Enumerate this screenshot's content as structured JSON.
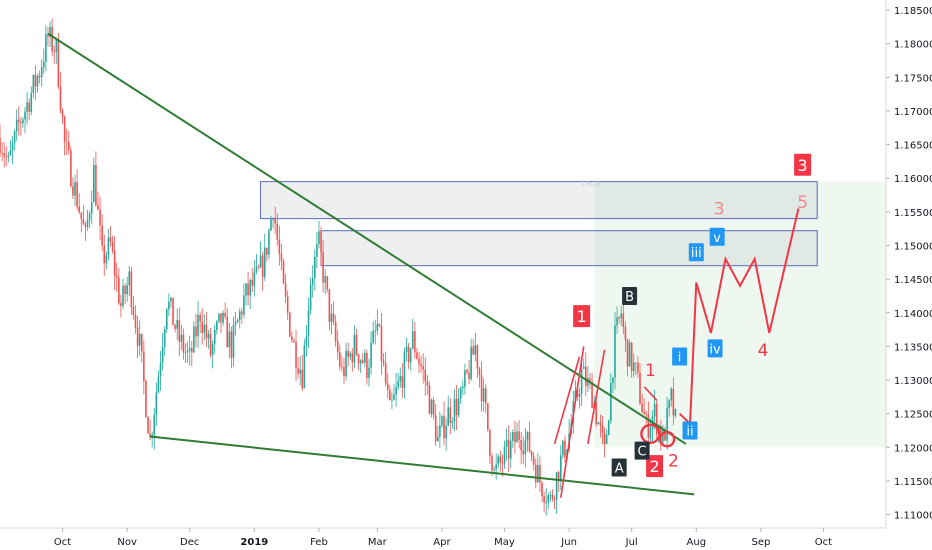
{
  "chart_data": {
    "type": "candlestick",
    "x_axis": {
      "ticks": [
        {
          "date": "2018-10-01",
          "label": "Oct"
        },
        {
          "date": "2018-11-01",
          "label": "Nov"
        },
        {
          "date": "2018-12-01",
          "label": "Dec"
        },
        {
          "date": "2019-01-01",
          "label": "2019"
        },
        {
          "date": "2019-02-01",
          "label": "Feb"
        },
        {
          "date": "2019-03-01",
          "label": "Mar"
        },
        {
          "date": "2019-04-01",
          "label": "Apr"
        },
        {
          "date": "2019-05-01",
          "label": "May"
        },
        {
          "date": "2019-06-01",
          "label": "Jun"
        },
        {
          "date": "2019-07-01",
          "label": "Jul"
        },
        {
          "date": "2019-08-01",
          "label": "Aug"
        },
        {
          "date": "2019-09-01",
          "label": "Sep"
        },
        {
          "date": "2019-10-01",
          "label": "Oct"
        }
      ],
      "range": [
        "2018-09-01",
        "2019-10-31"
      ]
    },
    "y_axis": {
      "range": [
        1.108,
        1.1865
      ],
      "tick_labels": [
        "1.18500",
        "1.18000",
        "1.17500",
        "1.17000",
        "1.16500",
        "1.16000",
        "1.15500",
        "1.15000",
        "1.14500",
        "1.14000",
        "1.13500",
        "1.13000",
        "1.12500",
        "1.12000",
        "1.11500",
        "1.11000"
      ],
      "position": "right",
      "grid": false
    },
    "price_path": [
      [
        "2018-09-01",
        1.166
      ],
      [
        "2018-09-05",
        1.162
      ],
      [
        "2018-09-10",
        1.168
      ],
      [
        "2018-09-14",
        1.171
      ],
      [
        "2018-09-20",
        1.176
      ],
      [
        "2018-09-24",
        1.181
      ],
      [
        "2018-09-28",
        1.179
      ],
      [
        "2018-10-02",
        1.165
      ],
      [
        "2018-10-08",
        1.157
      ],
      [
        "2018-10-12",
        1.151
      ],
      [
        "2018-10-16",
        1.161
      ],
      [
        "2018-10-20",
        1.148
      ],
      [
        "2018-10-24",
        1.15
      ],
      [
        "2018-10-29",
        1.141
      ],
      [
        "2018-11-02",
        1.145
      ],
      [
        "2018-11-07",
        1.135
      ],
      [
        "2018-11-12",
        1.121
      ],
      [
        "2018-11-16",
        1.131
      ],
      [
        "2018-11-20",
        1.142
      ],
      [
        "2018-11-26",
        1.136
      ],
      [
        "2018-12-01",
        1.133
      ],
      [
        "2018-12-06",
        1.14
      ],
      [
        "2018-12-11",
        1.134
      ],
      [
        "2018-12-16",
        1.139
      ],
      [
        "2018-12-21",
        1.135
      ],
      [
        "2018-12-27",
        1.142
      ],
      [
        "2019-01-02",
        1.145
      ],
      [
        "2019-01-06",
        1.148
      ],
      [
        "2019-01-10",
        1.156
      ],
      [
        "2019-01-15",
        1.143
      ],
      [
        "2019-01-20",
        1.135
      ],
      [
        "2019-01-24",
        1.131
      ],
      [
        "2019-01-28",
        1.145
      ],
      [
        "2019-02-01",
        1.15
      ],
      [
        "2019-02-06",
        1.14
      ],
      [
        "2019-02-12",
        1.131
      ],
      [
        "2019-02-18",
        1.135
      ],
      [
        "2019-02-24",
        1.132
      ],
      [
        "2019-03-01",
        1.138
      ],
      [
        "2019-03-07",
        1.125
      ],
      [
        "2019-03-12",
        1.13
      ],
      [
        "2019-03-18",
        1.136
      ],
      [
        "2019-03-24",
        1.13
      ],
      [
        "2019-03-30",
        1.121
      ],
      [
        "2019-04-04",
        1.125
      ],
      [
        "2019-04-10",
        1.127
      ],
      [
        "2019-04-17",
        1.135
      ],
      [
        "2019-04-22",
        1.125
      ],
      [
        "2019-04-26",
        1.116
      ],
      [
        "2019-05-02",
        1.119
      ],
      [
        "2019-05-08",
        1.122
      ],
      [
        "2019-05-13",
        1.12
      ],
      [
        "2019-05-18",
        1.115
      ],
      [
        "2019-05-23",
        1.112
      ],
      [
        "2019-05-28",
        1.118
      ],
      [
        "2019-06-01",
        1.122
      ],
      [
        "2019-06-07",
        1.131
      ],
      [
        "2019-06-12",
        1.128
      ],
      [
        "2019-06-18",
        1.119
      ],
      [
        "2019-06-23",
        1.136
      ],
      [
        "2019-06-26",
        1.14
      ],
      [
        "2019-06-28",
        1.135
      ],
      [
        "2019-07-03",
        1.131
      ],
      [
        "2019-07-08",
        1.123
      ],
      [
        "2019-07-12",
        1.125
      ],
      [
        "2019-07-16",
        1.121
      ],
      [
        "2019-07-20",
        1.127
      ],
      [
        "2019-07-23",
        1.122
      ]
    ],
    "trendlines": [
      {
        "from": [
          "2018-09-24",
          1.1815
        ],
        "to": [
          "2019-07-27",
          1.1205
        ],
        "color": "#2e7d32"
      },
      {
        "from": [
          "2018-11-12",
          1.1216
        ],
        "to": [
          "2019-07-31",
          1.113
        ],
        "color": "#2e7d32"
      }
    ],
    "zones": [
      {
        "from": [
          "2019-01-04",
          1.1595
        ],
        "to": [
          "2019-09-28",
          1.154
        ],
        "label": "1.618"
      },
      {
        "from": [
          "2019-02-02",
          1.1522
        ],
        "to": [
          "2019-09-28",
          1.147
        ]
      }
    ],
    "projection_box": {
      "from": [
        "2019-06-13",
        1.1595
      ],
      "to": [
        "2019-10-31",
        1.12
      ]
    },
    "projection_path": [
      [
        "2019-07-24",
        1.125
      ],
      [
        "2019-07-29",
        1.1235
      ],
      [
        "2019-08-01",
        1.1445
      ],
      [
        "2019-08-08",
        1.137
      ],
      [
        "2019-08-15",
        1.148
      ],
      [
        "2019-08-22",
        1.144
      ],
      [
        "2019-08-29",
        1.148
      ],
      [
        "2019-09-05",
        1.137
      ],
      [
        "2019-09-19",
        1.1555
      ]
    ],
    "impulse_lines": [
      [
        [
          "2019-05-28",
          1.1125
        ],
        [
          "2019-06-08",
          1.135
        ]
      ],
      [
        [
          "2019-05-25",
          1.1205
        ],
        [
          "2019-06-06",
          1.1335
        ]
      ],
      [
        [
          "2019-06-10",
          1.1205
        ],
        [
          "2019-06-18",
          1.1345
        ]
      ],
      [
        [
          "2019-07-07",
          1.129
        ],
        [
          "2019-07-13",
          1.127
        ]
      ]
    ],
    "circles": [
      {
        "at": [
          "2019-07-10",
          1.122
        ],
        "r": 9
      },
      {
        "at": [
          "2019-07-18",
          1.1212
        ],
        "r": 7
      }
    ],
    "wave_labels": [
      {
        "text": "1",
        "kind": "box",
        "color": "#f23645",
        "at": [
          "2019-06-07",
          1.1395
        ]
      },
      {
        "text": "2",
        "kind": "box",
        "color": "#f23645",
        "at": [
          "2019-07-12",
          1.1172
        ]
      },
      {
        "text": "3",
        "kind": "box",
        "color": "#f23645",
        "at": [
          "2019-09-21",
          1.162
        ]
      },
      {
        "text": "A",
        "kind": "box",
        "color": "#263238",
        "at": [
          "2019-06-25",
          1.117
        ]
      },
      {
        "text": "B",
        "kind": "box",
        "color": "#263238",
        "at": [
          "2019-06-30",
          1.1425
        ]
      },
      {
        "text": "C",
        "kind": "box",
        "color": "#263238",
        "at": [
          "2019-07-06",
          1.1195
        ]
      },
      {
        "text": "i",
        "kind": "box",
        "color": "#2196f3",
        "at": [
          "2019-07-24",
          1.1335
        ]
      },
      {
        "text": "ii",
        "kind": "box",
        "color": "#2196f3",
        "at": [
          "2019-07-29",
          1.1225
        ]
      },
      {
        "text": "iii",
        "kind": "box",
        "color": "#2196f3",
        "at": [
          "2019-08-01",
          1.149
        ]
      },
      {
        "text": "iv",
        "kind": "box",
        "color": "#2196f3",
        "at": [
          "2019-08-10",
          1.1347
        ]
      },
      {
        "text": "v",
        "kind": "box",
        "color": "#2196f3",
        "at": [
          "2019-08-11",
          1.1513
        ]
      },
      {
        "text": "1",
        "kind": "text",
        "color": "#f23645",
        "at": [
          "2019-07-10",
          1.1315
        ]
      },
      {
        "text": "2",
        "kind": "text",
        "color": "#f23645",
        "at": [
          "2019-07-21",
          1.118
        ]
      },
      {
        "text": "3",
        "kind": "text",
        "color": "#f08a8a",
        "at": [
          "2019-08-12",
          1.1555
        ]
      },
      {
        "text": "4",
        "kind": "text",
        "color": "#f23645",
        "at": [
          "2019-09-02",
          1.1345
        ]
      },
      {
        "text": "5",
        "kind": "text",
        "color": "#f08a8a",
        "at": [
          "2019-09-21",
          1.1565
        ]
      }
    ]
  }
}
